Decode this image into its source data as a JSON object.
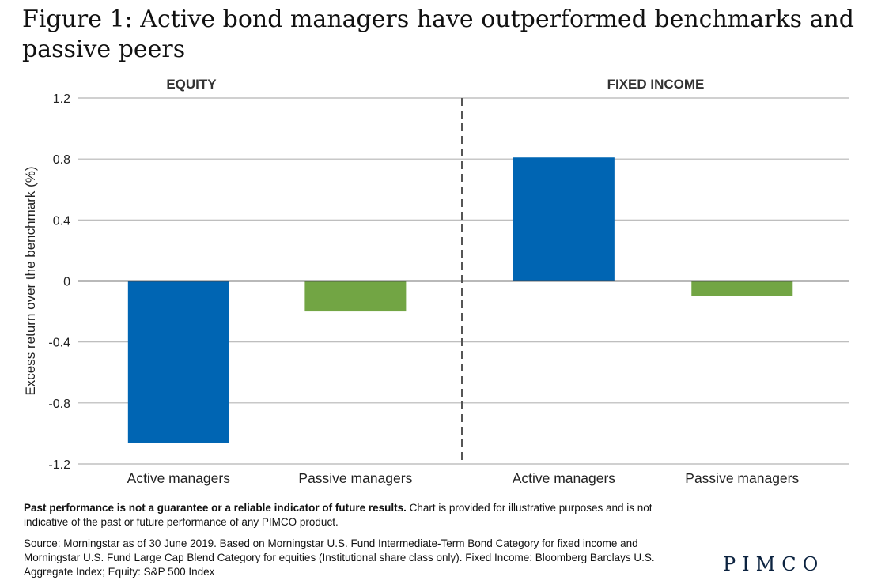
{
  "title": "Figure 1: Active bond managers have outperformed benchmarks and passive peers",
  "footnote": {
    "bold": "Past performance is not a guarantee or a reliable indicator of future results.",
    "rest": " Chart is provided for illustrative purposes and is not indicative of the past or future performance of any PIMCO product."
  },
  "source": "Source: Morningstar as of 30 June 2019. Based on Morningstar U.S. Fund Intermediate-Term Bond Category for fixed income and Morningstar U.S. Fund Large Cap Blend Category for equities (Institutional share class only). Fixed Income: Bloomberg Barclays U.S. Aggregate Index; Equity: S&P 500 Index",
  "logo": "PIMCO",
  "colors": {
    "active": "#0065b3",
    "passive": "#72a544",
    "grid": "#b5b5b5",
    "divider": "#555555"
  },
  "chart_data": {
    "type": "bar",
    "ylabel": "Excess return over the benchmark (%)",
    "ylim": [
      -1.2,
      1.2
    ],
    "yticks": [
      1.2,
      0.8,
      0.4,
      0,
      -0.4,
      -0.8,
      -1.2
    ],
    "ytick_labels": [
      "1.2",
      "0.8",
      "0.4",
      "0",
      "-0.4",
      "-0.8",
      "-1.2"
    ],
    "grid": true,
    "groups": [
      {
        "name": "EQUITY",
        "categories": [
          "Active managers",
          "Passive managers"
        ],
        "values": [
          -1.06,
          -0.2
        ]
      },
      {
        "name": "FIXED INCOME",
        "categories": [
          "Active managers",
          "Passive managers"
        ],
        "values": [
          0.81,
          -0.1
        ]
      }
    ]
  }
}
